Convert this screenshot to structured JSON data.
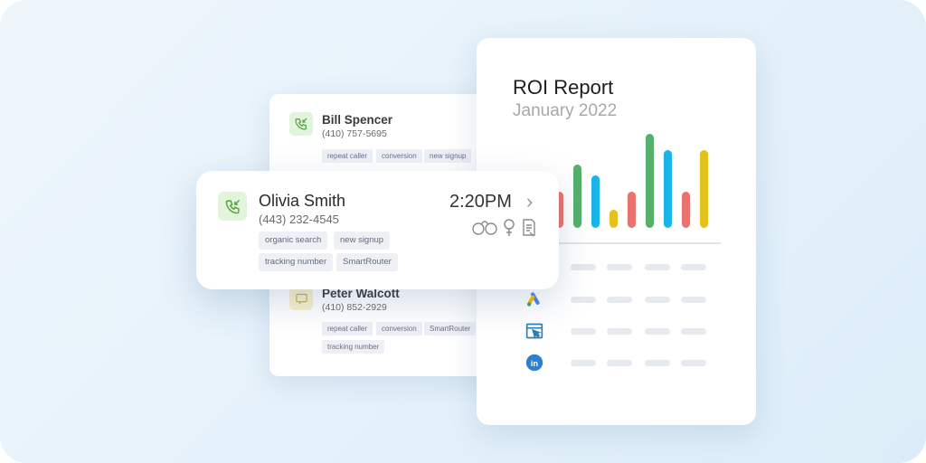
{
  "back_card": {
    "top_contact": {
      "name": "Bill Spencer",
      "phone": "(410) 757-5695",
      "tags": [
        "repeat caller",
        "conversion",
        "new signup"
      ]
    },
    "bottom_contact": {
      "name": "Peter Walcott",
      "phone": "(410) 852-2929",
      "tags": [
        "repeat caller",
        "conversion",
        "SmartRouter",
        "tracking number"
      ]
    }
  },
  "front_card": {
    "name": "Olivia Smith",
    "phone": "(443) 232-4545",
    "time": "2:20PM",
    "tags": [
      "organic search",
      "new signup",
      "tracking number",
      "SmartRouter"
    ],
    "icons": [
      "binoculars-icon",
      "female-icon",
      "document-icon"
    ]
  },
  "roi_report": {
    "title": "ROI Report",
    "subtitle": "January 2022",
    "bar_colors": {
      "red": "#e8736f",
      "green": "#55b06a",
      "blue": "#1ab4e8",
      "yellow": "#e3c21b"
    },
    "sources": [
      "google-ads-icon",
      "browser-click-icon",
      "linkedin-icon"
    ]
  },
  "colors": {
    "accent_green": "#55b06a",
    "background": "#e6f2fb"
  }
}
